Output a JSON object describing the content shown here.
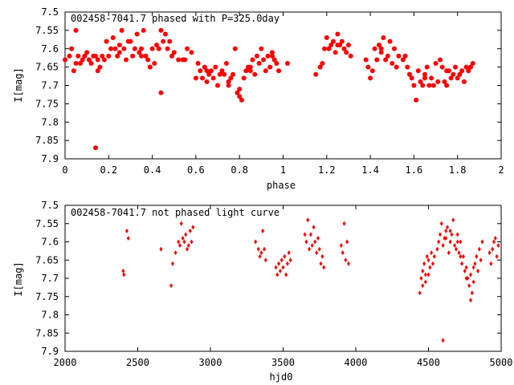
{
  "chart_data": [
    {
      "type": "scatter",
      "title": "002458-7041.7 phased with P=325.0day",
      "xlabel": "phase",
      "ylabel": "I[mag]",
      "xlim": [
        0,
        2
      ],
      "ylim": [
        7.9,
        7.5
      ],
      "y_inverted": true,
      "xticks": [
        0,
        0.2,
        0.4,
        0.6,
        0.8,
        1,
        1.2,
        1.4,
        1.6,
        1.8,
        2
      ],
      "xtick_labels": [
        "0",
        "0.2",
        "0.4",
        "0.6",
        "0.8",
        "1",
        "1.2",
        "1.4",
        "1.6",
        "1.8",
        "2"
      ],
      "yticks": [
        7.5,
        7.55,
        7.6,
        7.65,
        7.7,
        7.75,
        7.8,
        7.85,
        7.9
      ],
      "ytick_labels": [
        "7.5",
        "7.55",
        "7.6",
        "7.65",
        "7.7",
        "7.75",
        "7.8",
        "7.85",
        "7.9"
      ],
      "marker": "filled-circle",
      "color": "#ff0000",
      "grid": false,
      "series": [
        {
          "x": [
            0.0,
            0.02,
            0.03,
            0.04,
            0.05,
            0.06,
            0.07,
            0.08,
            0.09,
            0.1,
            0.11,
            0.12,
            0.13,
            0.14,
            0.15,
            0.16,
            0.17,
            0.18,
            0.19,
            0.2,
            0.21,
            0.22,
            0.23,
            0.24,
            0.25,
            0.26,
            0.27,
            0.28,
            0.29,
            0.3,
            0.31,
            0.32,
            0.33,
            0.34,
            0.35,
            0.36,
            0.37,
            0.38,
            0.39,
            0.4,
            0.41,
            0.42,
            0.43,
            0.44,
            0.45,
            0.46,
            0.47,
            0.48,
            0.49,
            0.5,
            0.52,
            0.54,
            0.56,
            0.58,
            0.6,
            0.61,
            0.62,
            0.63,
            0.64,
            0.65,
            0.66,
            0.67,
            0.68,
            0.69,
            0.7,
            0.71,
            0.72,
            0.73,
            0.74,
            0.75,
            0.76,
            0.77,
            0.78,
            0.79,
            0.8,
            0.81,
            0.82,
            0.83,
            0.84,
            0.85,
            0.86,
            0.87,
            0.88,
            0.89,
            0.9,
            0.91,
            0.92,
            0.93,
            0.94,
            0.95,
            0.96,
            0.97,
            0.98,
            1.02,
            1.15,
            1.17,
            1.18,
            1.19,
            1.2,
            1.21,
            1.22,
            1.23,
            1.24,
            1.25,
            1.26,
            1.27,
            1.28,
            1.29,
            1.3,
            1.31,
            1.38,
            1.39,
            1.4,
            1.41,
            1.42,
            1.43,
            1.44,
            1.45,
            1.46,
            1.47,
            1.48,
            1.49,
            1.5,
            1.51,
            1.52,
            1.53,
            1.55,
            1.56,
            1.57,
            1.58,
            1.59,
            1.6,
            1.61,
            1.62,
            1.63,
            1.64,
            1.65,
            1.66,
            1.67,
            1.68,
            1.69,
            1.7,
            1.71,
            1.72,
            1.73,
            1.74,
            1.75,
            1.76,
            1.77,
            1.78,
            1.79,
            1.8,
            1.81,
            1.82,
            1.83,
            1.84,
            1.85,
            1.86,
            1.87,
            0.14,
            0.44,
            0.8,
            0.05,
            0.15,
            0.25,
            0.35,
            0.55,
            0.65,
            0.75,
            0.85,
            0.95,
            1.25,
            1.45,
            1.65,
            1.75
          ],
          "y": [
            7.63,
            7.62,
            7.6,
            7.66,
            7.55,
            7.62,
            7.64,
            7.63,
            7.62,
            7.61,
            7.63,
            7.64,
            7.62,
            7.62,
            7.66,
            7.65,
            7.62,
            7.63,
            7.58,
            7.62,
            7.6,
            7.57,
            7.6,
            7.62,
            7.59,
            7.55,
            7.6,
            7.63,
            7.58,
            7.58,
            7.62,
            7.6,
            7.56,
            7.61,
            7.6,
            7.55,
            7.62,
            7.63,
            7.65,
            7.6,
            7.64,
            7.59,
            7.6,
            7.55,
            7.58,
            7.56,
            7.6,
            7.58,
            7.62,
            7.61,
            7.63,
            7.63,
            7.6,
            7.61,
            7.68,
            7.64,
            7.66,
            7.68,
            7.65,
            7.69,
            7.67,
            7.66,
            7.68,
            7.65,
            7.7,
            7.67,
            7.66,
            7.67,
            7.64,
            7.7,
            7.68,
            7.67,
            7.6,
            7.72,
            7.73,
            7.74,
            7.68,
            7.66,
            7.65,
            7.66,
            7.63,
            7.67,
            7.62,
            7.64,
            7.6,
            7.63,
            7.66,
            7.62,
            7.65,
            7.61,
            7.63,
            7.64,
            7.66,
            7.64,
            7.67,
            7.65,
            7.64,
            7.6,
            7.57,
            7.6,
            7.59,
            7.58,
            7.61,
            7.56,
            7.59,
            7.58,
            7.6,
            7.61,
            7.59,
            7.62,
            7.63,
            7.65,
            7.68,
            7.66,
            7.6,
            7.63,
            7.59,
            7.61,
            7.57,
            7.63,
            7.62,
            7.58,
            7.64,
            7.6,
            7.65,
            7.62,
            7.63,
            7.62,
            7.65,
            7.67,
            7.68,
            7.7,
            7.74,
            7.66,
            7.69,
            7.7,
            7.67,
            7.65,
            7.7,
            7.68,
            7.7,
            7.64,
            7.69,
            7.63,
            7.65,
            7.69,
            7.7,
            7.66,
            7.68,
            7.67,
            7.65,
            7.68,
            7.67,
            7.66,
            7.69,
            7.65,
            7.66,
            7.65,
            7.64,
            7.87,
            7.72,
            7.71,
            7.64,
            7.63,
            7.61,
            7.62,
            7.63,
            7.66,
            7.69,
            7.65,
            7.62,
            7.59,
            7.6,
            7.68,
            7.66
          ]
        }
      ]
    },
    {
      "type": "scatter",
      "title": "002458-7041.7 not phased light curve",
      "xlabel": "hjd0",
      "ylabel": "I[mag]",
      "xlim": [
        2000,
        5000
      ],
      "ylim": [
        7.9,
        7.5
      ],
      "y_inverted": true,
      "xticks": [
        2000,
        2500,
        3000,
        3500,
        4000,
        4500,
        5000
      ],
      "xtick_labels": [
        "2000",
        "2500",
        "3000",
        "3500",
        "4000",
        "4500",
        "5000"
      ],
      "yticks": [
        7.5,
        7.55,
        7.6,
        7.65,
        7.7,
        7.75,
        7.8,
        7.85,
        7.9
      ],
      "ytick_labels": [
        "7.5",
        "7.55",
        "7.6",
        "7.65",
        "7.7",
        "7.75",
        "7.8",
        "7.85",
        "7.9"
      ],
      "marker": "diamond",
      "color": "#ff0000",
      "grid": false,
      "series": [
        {
          "x": [
            2400,
            2405,
            2425,
            2435,
            2660,
            2730,
            2740,
            2760,
            2780,
            2790,
            2800,
            2810,
            2820,
            2830,
            2840,
            2850,
            2860,
            2870,
            2880,
            3310,
            3330,
            3340,
            3350,
            3360,
            3370,
            3380,
            3450,
            3460,
            3470,
            3480,
            3490,
            3500,
            3510,
            3520,
            3530,
            3540,
            3550,
            3650,
            3660,
            3670,
            3680,
            3690,
            3700,
            3710,
            3720,
            3730,
            3740,
            3750,
            3760,
            3770,
            3780,
            3900,
            3910,
            3920,
            3930,
            3940,
            3950,
            4440,
            4450,
            4460,
            4470,
            4480,
            4490,
            4500,
            4510,
            4520,
            4530,
            4540,
            4560,
            4570,
            4580,
            4590,
            4600,
            4610,
            4620,
            4630,
            4640,
            4650,
            4660,
            4670,
            4680,
            4690,
            4700,
            4710,
            4720,
            4730,
            4740,
            4750,
            4760,
            4770,
            4780,
            4790,
            4800,
            4810,
            4820,
            4830,
            4840,
            4850,
            4860,
            4870,
            4920,
            4930,
            4940,
            4950,
            4960,
            4970,
            4980,
            4600,
            4460,
            4480,
            4500,
            4620,
            4650,
            4700,
            4720,
            4760,
            4790,
            4810
          ],
          "y": [
            7.68,
            7.69,
            7.57,
            7.59,
            7.62,
            7.72,
            7.66,
            7.63,
            7.6,
            7.61,
            7.55,
            7.59,
            7.6,
            7.58,
            7.62,
            7.61,
            7.57,
            7.6,
            7.56,
            7.6,
            7.62,
            7.64,
            7.63,
            7.57,
            7.62,
            7.65,
            7.67,
            7.69,
            7.66,
            7.68,
            7.65,
            7.67,
            7.64,
            7.69,
            7.66,
            7.63,
            7.65,
            7.58,
            7.6,
            7.54,
            7.62,
            7.58,
            7.61,
            7.56,
            7.6,
            7.63,
            7.59,
            7.62,
            7.66,
            7.64,
            7.67,
            7.61,
            7.63,
            7.55,
            7.65,
            7.6,
            7.66,
            7.74,
            7.7,
            7.68,
            7.66,
            7.71,
            7.64,
            7.69,
            7.67,
            7.63,
            7.66,
            7.64,
            7.62,
            7.6,
            7.58,
            7.55,
            7.61,
            7.59,
            7.57,
            7.56,
            7.63,
            7.6,
            7.58,
            7.54,
            7.61,
            7.62,
            7.58,
            7.63,
            7.6,
            7.66,
            7.64,
            7.68,
            7.67,
            7.7,
            7.72,
            7.69,
            7.74,
            7.71,
            7.66,
            7.64,
            7.68,
            7.62,
            7.65,
            7.6,
            7.63,
            7.66,
            7.62,
            7.6,
            7.59,
            7.64,
            7.61,
            7.87,
            7.72,
            7.69,
            7.65,
            7.59,
            7.57,
            7.6,
            7.64,
            7.7,
            7.76,
            7.67
          ]
        }
      ]
    }
  ]
}
